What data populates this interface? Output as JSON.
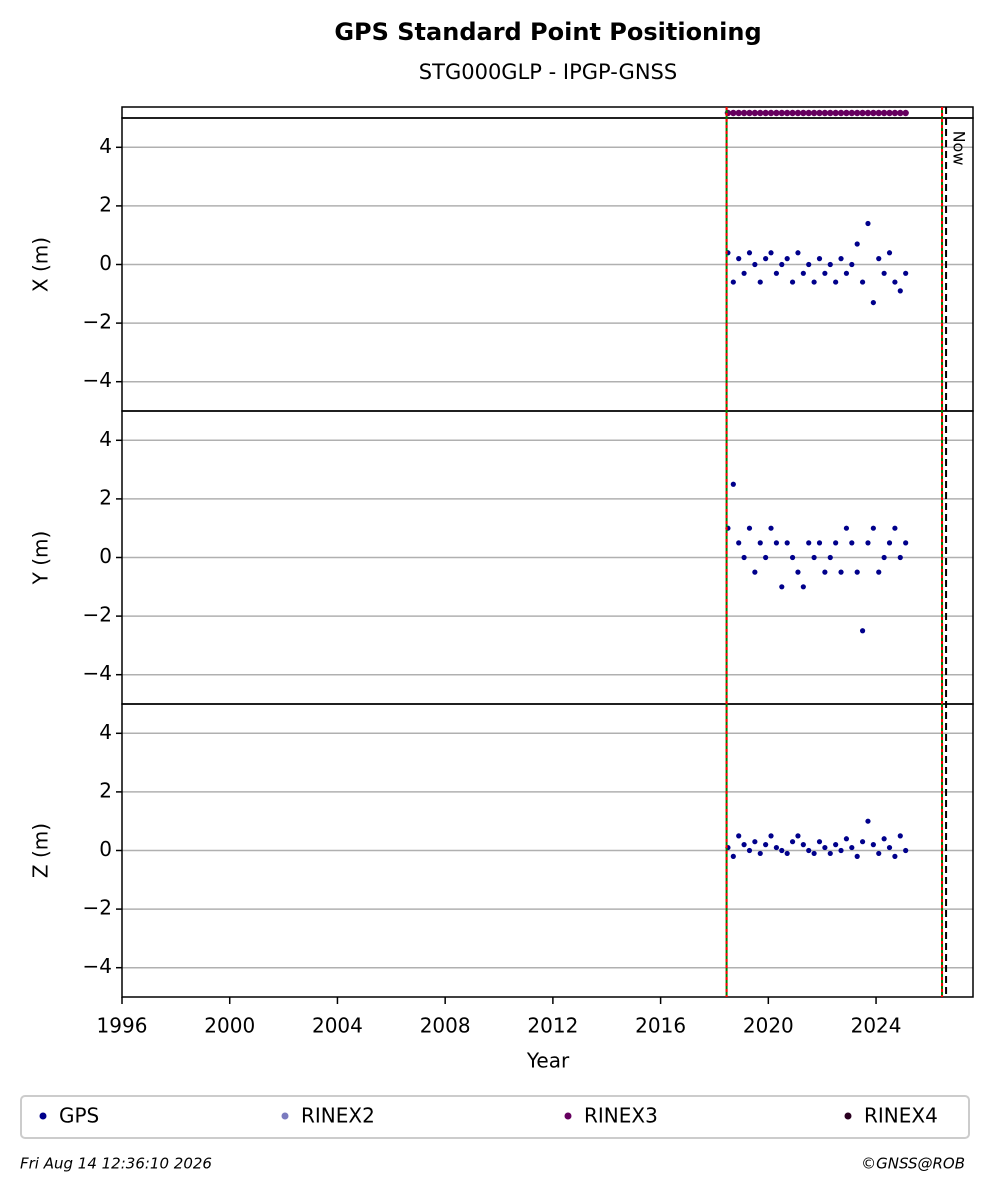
{
  "chart_data": {
    "type": "scatter",
    "title": "GPS Standard Point Positioning",
    "subtitle": "STG000GLP - IPGP-GNSS",
    "xlabel": "Year",
    "xlim": [
      1996,
      2027.6
    ],
    "xticks": [
      1996,
      2000,
      2004,
      2008,
      2012,
      2016,
      2020,
      2024
    ],
    "grid": true,
    "legend_series": [
      {
        "name": "GPS",
        "color": "#00008b"
      },
      {
        "name": "RINEX2",
        "color": "#7b7bbf"
      },
      {
        "name": "RINEX3",
        "color": "#66005f"
      },
      {
        "name": "RINEX4",
        "color": "#2a0020"
      }
    ],
    "availability": {
      "name": "RINEX3",
      "color": "#66005f",
      "x": [
        2018.5,
        2018.7,
        2018.9,
        2019.1,
        2019.3,
        2019.5,
        2019.7,
        2019.9,
        2020.1,
        2020.3,
        2020.5,
        2020.7,
        2020.9,
        2021.1,
        2021.3,
        2021.5,
        2021.7,
        2021.9,
        2022.1,
        2022.3,
        2022.5,
        2022.7,
        2022.9,
        2023.1,
        2023.3,
        2023.5,
        2023.7,
        2023.9,
        2024.1,
        2024.3,
        2024.5,
        2024.7,
        2024.9,
        2025.1
      ]
    },
    "vlines": [
      {
        "x": 2018.45,
        "color": "#007f00",
        "style": "solid"
      },
      {
        "x": 2018.45,
        "color": "#ff0000",
        "style": "dotted"
      },
      {
        "x": 2026.45,
        "color": "#007f00",
        "style": "solid"
      },
      {
        "x": 2026.45,
        "color": "#ff0000",
        "style": "dotted"
      }
    ],
    "now": {
      "x": 2026.6,
      "label": "Now"
    },
    "panels": [
      {
        "ylabel": "X (m)",
        "ylim": [
          -5,
          5
        ],
        "yticks": [
          {
            "value": -4,
            "label": "−4"
          },
          {
            "value": -2,
            "label": "−2"
          },
          0,
          2,
          4
        ],
        "series": [
          {
            "name": "GPS",
            "color": "#00008b",
            "x": [
              2018.5,
              2018.7,
              2018.9,
              2019.1,
              2019.3,
              2019.5,
              2019.7,
              2019.9,
              2020.1,
              2020.3,
              2020.5,
              2020.7,
              2020.9,
              2021.1,
              2021.3,
              2021.5,
              2021.7,
              2021.9,
              2022.1,
              2022.3,
              2022.5,
              2022.7,
              2022.9,
              2023.1,
              2023.3,
              2023.5,
              2023.7,
              2023.9,
              2024.1,
              2024.3,
              2024.5,
              2024.7,
              2024.9,
              2025.1
            ],
            "values": [
              0.4,
              -0.6,
              0.2,
              -0.3,
              0.4,
              0,
              -0.6,
              0.2,
              0.4,
              -0.3,
              0,
              0.2,
              -0.6,
              0.4,
              -0.3,
              0,
              -0.6,
              0.2,
              -0.3,
              0,
              -0.6,
              0.2,
              -0.3,
              0,
              0.7,
              -0.6,
              1.4,
              -1.3,
              0.2,
              -0.3,
              0.4,
              -0.6,
              -0.9,
              -0.3
            ]
          }
        ]
      },
      {
        "ylabel": "Y (m)",
        "ylim": [
          -5,
          5
        ],
        "yticks": [
          {
            "value": -4,
            "label": "−4"
          },
          {
            "value": -2,
            "label": "−2"
          },
          0,
          2,
          4
        ],
        "series": [
          {
            "name": "GPS",
            "color": "#00008b",
            "x": [
              2018.5,
              2018.7,
              2018.9,
              2019.1,
              2019.3,
              2019.5,
              2019.7,
              2019.9,
              2020.1,
              2020.3,
              2020.5,
              2020.7,
              2020.9,
              2021.1,
              2021.3,
              2021.5,
              2021.7,
              2021.9,
              2022.1,
              2022.3,
              2022.5,
              2022.7,
              2022.9,
              2023.1,
              2023.3,
              2023.5,
              2023.7,
              2023.9,
              2024.1,
              2024.3,
              2024.5,
              2024.7,
              2024.9,
              2025.1
            ],
            "values": [
              1,
              2.5,
              0.5,
              0,
              1,
              -0.5,
              0.5,
              0,
              1,
              0.5,
              -1,
              0.5,
              0,
              -0.5,
              -1,
              0.5,
              0,
              0.5,
              -0.5,
              0,
              0.5,
              -0.5,
              1,
              0.5,
              -0.5,
              -2.5,
              0.5,
              1,
              -0.5,
              0,
              0.5,
              1,
              0,
              0.5
            ]
          }
        ]
      },
      {
        "ylabel": "Z (m)",
        "ylim": [
          -5,
          5
        ],
        "yticks": [
          {
            "value": -4,
            "label": "−4"
          },
          {
            "value": -2,
            "label": "−2"
          },
          0,
          2,
          4
        ],
        "series": [
          {
            "name": "GPS",
            "color": "#00008b",
            "x": [
              2018.5,
              2018.7,
              2018.9,
              2019.1,
              2019.3,
              2019.5,
              2019.7,
              2019.9,
              2020.1,
              2020.3,
              2020.5,
              2020.7,
              2020.9,
              2021.1,
              2021.3,
              2021.5,
              2021.7,
              2021.9,
              2022.1,
              2022.3,
              2022.5,
              2022.7,
              2022.9,
              2023.1,
              2023.3,
              2023.5,
              2023.7,
              2023.9,
              2024.1,
              2024.3,
              2024.5,
              2024.7,
              2024.9,
              2025.1
            ],
            "values": [
              0.1,
              -0.2,
              0.5,
              0.2,
              0,
              0.3,
              -0.1,
              0.2,
              0.5,
              0.1,
              0,
              -0.1,
              0.3,
              0.5,
              0.2,
              0,
              -0.1,
              0.3,
              0.1,
              -0.1,
              0.2,
              0,
              0.4,
              0.1,
              -0.2,
              0.3,
              1,
              0.2,
              -0.1,
              0.4,
              0.1,
              -0.2,
              0.5,
              0
            ]
          }
        ]
      }
    ],
    "footer_left": "Fri Aug 14 12:36:10 2026",
    "footer_right": "©GNSS@ROB"
  }
}
